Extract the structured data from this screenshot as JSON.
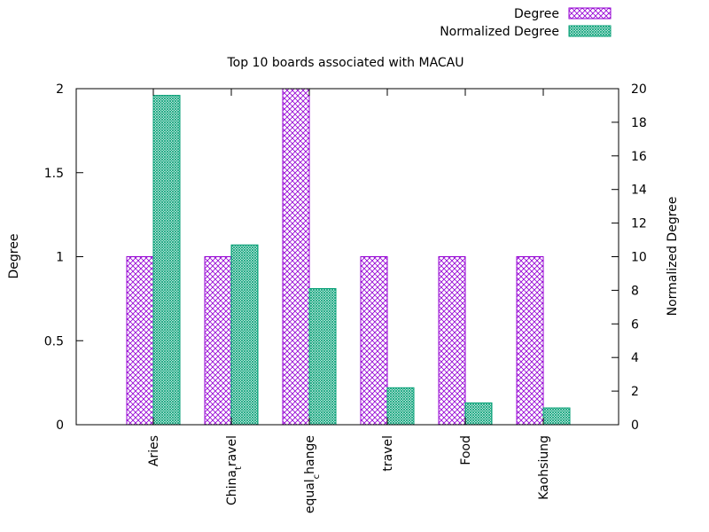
{
  "chart_data": {
    "type": "bar",
    "title": "Top 10 boards associated with MACAU",
    "categories": [
      "Aries",
      "China_travel",
      "equal_change",
      "travel",
      "Food",
      "Kaohsiung"
    ],
    "category_labels": [
      {
        "main": "Aries",
        "sub": ""
      },
      {
        "main": "China",
        "sub": "t",
        "rest": "ravel"
      },
      {
        "main": "equal",
        "sub": "c",
        "rest": "hange"
      },
      {
        "main": "travel",
        "sub": ""
      },
      {
        "main": "Food",
        "sub": ""
      },
      {
        "main": "Kaohsiung",
        "sub": ""
      }
    ],
    "series": [
      {
        "name": "Degree",
        "axis": "left",
        "values": [
          1,
          1,
          2,
          1,
          1,
          1
        ],
        "color": "#9400d3"
      },
      {
        "name": "Normalized Degree",
        "axis": "right",
        "values": [
          19.6,
          10.7,
          8.1,
          2.2,
          1.3,
          1.0
        ],
        "color": "#009e73"
      }
    ],
    "ylabel": "Degree",
    "y2label": "Normalized Degree",
    "ylim": [
      0,
      2
    ],
    "y2lim": [
      0,
      20
    ],
    "yticks": [
      "0",
      "0.5",
      "1",
      "1.5",
      "2"
    ],
    "y2ticks": [
      "0",
      "2",
      "4",
      "6",
      "8",
      "10",
      "12",
      "14",
      "16",
      "18",
      "20"
    ],
    "grid": false,
    "legend": "top-right"
  }
}
